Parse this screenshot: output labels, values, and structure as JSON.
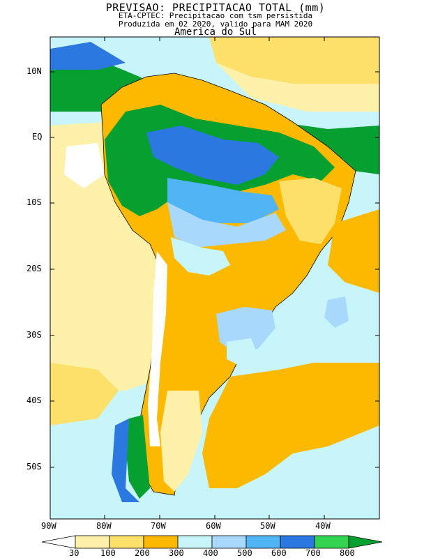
{
  "header": {
    "title": "PREVISAO: PRECIPITACAO TOTAL (mm)",
    "subtitle1": "ETA-CPTEC: Precipitacao com tsm persistida",
    "subtitle2": "Produzida em 02 2020, valido para MAM 2020",
    "region": "America do Sul"
  },
  "axes": {
    "lat_labels": [
      "10N",
      "EQ",
      "10S",
      "20S",
      "30S",
      "40S",
      "50S"
    ],
    "lon_labels": [
      "90W",
      "80W",
      "70W",
      "60W",
      "50W",
      "40W"
    ]
  },
  "colorbar": {
    "ticks": [
      "30",
      "100",
      "200",
      "300",
      "400",
      "500",
      "600",
      "700",
      "800"
    ],
    "colors": [
      "#ffffff",
      "#fdf0a8",
      "#fde06a",
      "#fdb800",
      "#c8f5fa",
      "#a8d8fb",
      "#50b4f5",
      "#2a78e0",
      "#34d450",
      "#06a030"
    ]
  },
  "colors": {
    "ocean": "#c8f5fa",
    "frame": "#000000"
  }
}
